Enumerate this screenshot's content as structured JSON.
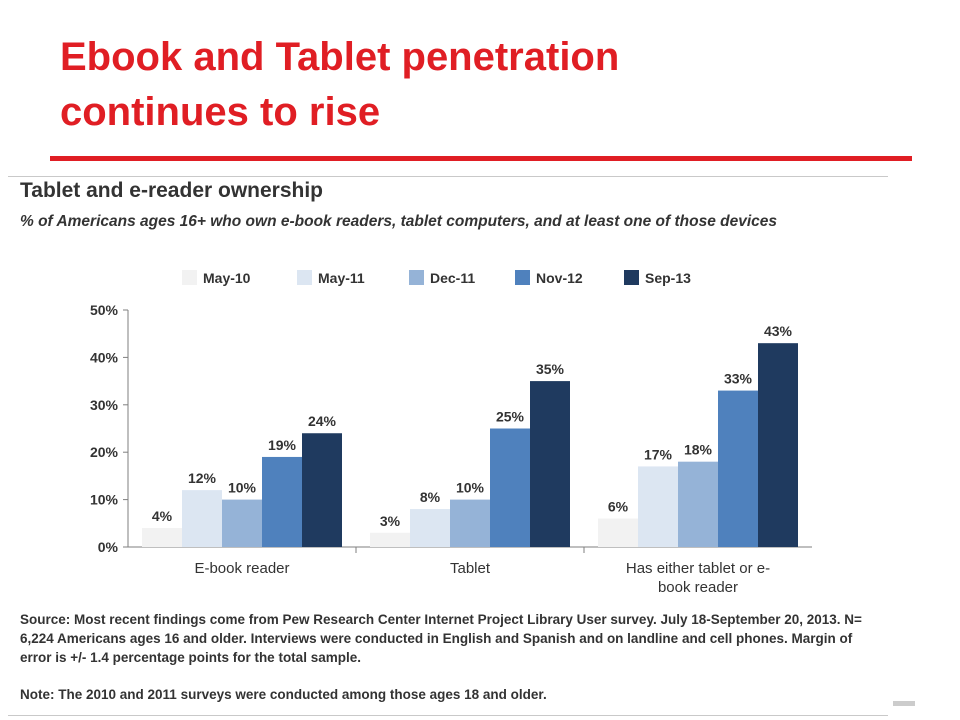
{
  "slide": {
    "title_line1": "Ebook and Tablet penetration",
    "title_line2": "continues to rise"
  },
  "chart_data": {
    "type": "bar",
    "title": "Tablet and e-reader ownership",
    "subtitle": "% of Americans ages 16+ who own e-book readers, tablet computers, and at least one of those devices",
    "categories": [
      "E-book reader",
      "Tablet",
      "Has either tablet or e-book reader"
    ],
    "category_lines": [
      [
        "E-book reader"
      ],
      [
        "Tablet"
      ],
      [
        "Has either tablet or e-",
        "book reader"
      ]
    ],
    "series": [
      {
        "name": "May-10",
        "color": "#f2f2f2",
        "values": [
          4,
          3,
          6
        ]
      },
      {
        "name": "May-11",
        "color": "#dce6f2",
        "values": [
          12,
          8,
          17
        ]
      },
      {
        "name": "Dec-11",
        "color": "#95b3d7",
        "values": [
          10,
          10,
          18
        ]
      },
      {
        "name": "Nov-12",
        "color": "#4f81bd",
        "values": [
          19,
          25,
          33
        ]
      },
      {
        "name": "Sep-13",
        "color": "#1f3a5f",
        "values": [
          24,
          35,
          43
        ]
      }
    ],
    "data_labels": [
      [
        "4%",
        "3%",
        "6%"
      ],
      [
        "12%",
        "8%",
        "17%"
      ],
      [
        "10%",
        "10%",
        "18%"
      ],
      [
        "19%",
        "25%",
        "33%"
      ],
      [
        "24%",
        "35%",
        "43%"
      ]
    ],
    "ylim": [
      0,
      50
    ],
    "yticks": [
      0,
      10,
      20,
      30,
      40,
      50
    ],
    "ytick_labels": [
      "0%",
      "10%",
      "20%",
      "30%",
      "40%",
      "50%"
    ],
    "legend_position": "top",
    "grid": false
  },
  "source": "Source: Most recent findings come from Pew Research Center Internet Project Library User survey. July 18-September 20, 2013. N= 6,224 Americans ages 16 and older. Interviews were conducted in English and Spanish and on landline and cell phones. Margin of error is +/- 1.4 percentage points for the total sample.",
  "note": "Note: The 2010 and 2011 surveys were conducted among those ages 18 and older."
}
